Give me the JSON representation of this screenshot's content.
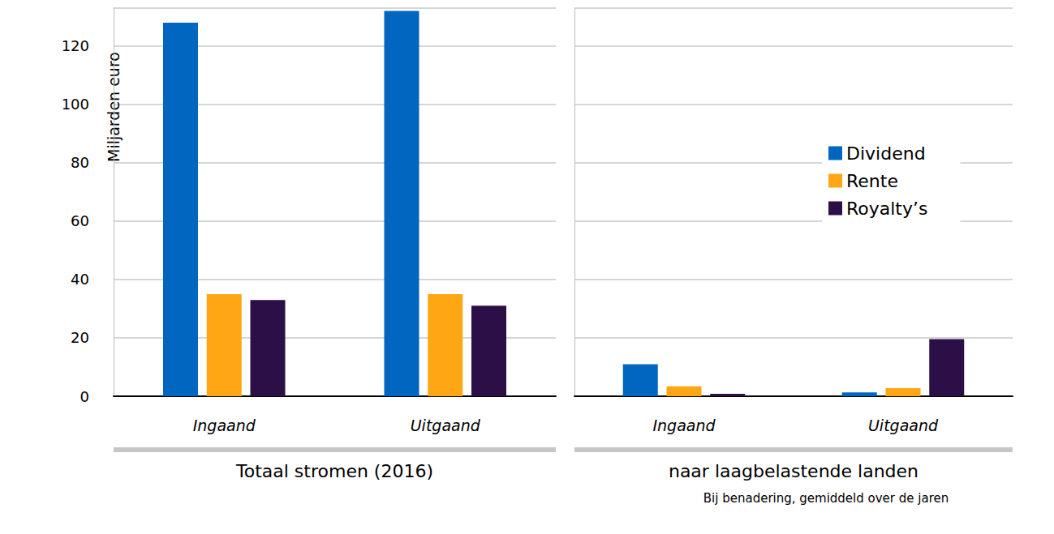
{
  "chart_data": [
    {
      "type": "bar",
      "title": "Totaal stromen (2016)",
      "y_label": "Miljarden euro",
      "categories": [
        "Ingaand",
        "Uitgaand"
      ],
      "series": [
        {
          "name": "Dividend",
          "color": "#0066bf",
          "values": [
            128,
            132
          ]
        },
        {
          "name": "Rente",
          "color": "#ffa614",
          "values": [
            35,
            35
          ]
        },
        {
          "name": "Royalty’s",
          "color": "#2d0f47",
          "values": [
            33,
            31
          ]
        }
      ],
      "ylim": [
        0,
        133
      ],
      "yticks": [
        0,
        20,
        40,
        60,
        80,
        100,
        120
      ],
      "grid": true
    },
    {
      "type": "bar",
      "title": "naar laagbelastende landen",
      "subtitle": "Bij benadering, gemiddeld over de jaren",
      "categories": [
        "Ingaand",
        "Uitgaand"
      ],
      "series": [
        {
          "name": "Dividend",
          "color": "#0066bf",
          "values": [
            11,
            1.3
          ]
        },
        {
          "name": "Rente",
          "color": "#ffa614",
          "values": [
            3.4,
            2.8
          ]
        },
        {
          "name": "Royalty’s",
          "color": "#2d0f47",
          "values": [
            0.8,
            19.6
          ]
        }
      ],
      "ylim": [
        0,
        133
      ],
      "yticks": [
        0,
        20,
        40,
        60,
        80,
        100,
        120
      ],
      "grid": true,
      "legend": "right",
      "tick_labels": "x"
    }
  ]
}
